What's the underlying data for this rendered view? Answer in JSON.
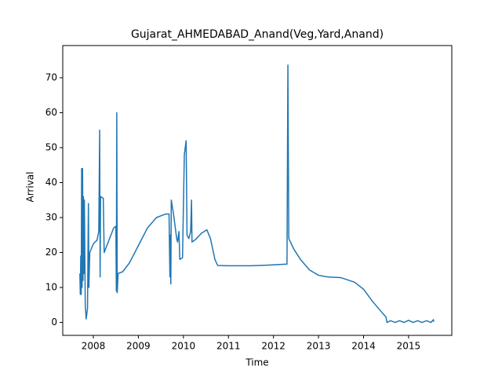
{
  "chart_data": {
    "type": "line",
    "title": "Gujarat_AHMEDABAD_Anand(Veg,Yard,Anand)",
    "x_label": "Time",
    "y_label": "Arrival",
    "xlim": [
      2007.32,
      2015.96
    ],
    "ylim": [
      -3.7,
      79.2
    ],
    "xticks": [
      2008,
      2009,
      2010,
      2011,
      2012,
      2013,
      2014,
      2015
    ],
    "yticks": [
      0,
      10,
      20,
      30,
      40,
      50,
      60,
      70
    ],
    "series": [
      {
        "color": "#1f77b4",
        "x": [
          2007.7,
          2007.71,
          2007.72,
          2007.73,
          2007.74,
          2007.75,
          2007.76,
          2007.77,
          2007.78,
          2007.79,
          2007.8,
          2007.82,
          2007.84,
          2007.87,
          2007.89,
          2007.9,
          2007.92,
          2008.0,
          2008.08,
          2008.12,
          2008.14,
          2008.15,
          2008.16,
          2008.22,
          2008.24,
          2008.3,
          2008.45,
          2008.5,
          2008.51,
          2008.52,
          2008.53,
          2008.55,
          2008.65,
          2008.8,
          2009.0,
          2009.2,
          2009.4,
          2009.6,
          2009.68,
          2009.7,
          2009.71,
          2009.72,
          2009.73,
          2009.78,
          2009.85,
          2009.87,
          2009.9,
          2009.92,
          2009.98,
          2010.02,
          2010.06,
          2010.08,
          2010.12,
          2010.16,
          2010.18,
          2010.19,
          2010.25,
          2010.4,
          2010.52,
          2010.6,
          2010.7,
          2010.76,
          2011.0,
          2011.5,
          2011.9,
          2012.3,
          2012.32,
          2012.34,
          2012.45,
          2012.6,
          2012.8,
          2013.0,
          2013.2,
          2013.5,
          2013.8,
          2014.0,
          2014.2,
          2014.4,
          2014.5,
          2014.52,
          2014.6,
          2014.7,
          2014.8,
          2014.9,
          2015.0,
          2015.1,
          2015.2,
          2015.3,
          2015.4,
          2015.5,
          2015.55,
          2015.56
        ],
        "values": [
          14,
          8,
          19,
          8,
          44,
          10,
          44,
          12,
          36,
          14,
          35,
          5,
          1,
          4,
          34,
          10,
          20,
          22.5,
          23.5,
          26,
          55,
          13,
          36,
          35.5,
          20,
          22,
          27,
          27.5,
          9,
          60,
          8.5,
          14,
          14.5,
          17,
          22,
          27,
          30,
          31,
          31,
          13,
          25,
          11,
          35,
          31,
          24,
          23,
          26,
          18,
          18.5,
          48,
          52,
          25,
          24,
          26,
          35,
          23,
          23.5,
          25.5,
          26.5,
          24,
          18,
          16.3,
          16.2,
          16.2,
          16.4,
          16.7,
          73.6,
          24,
          21,
          18,
          15,
          13.5,
          13,
          12.8,
          11.5,
          9.5,
          6,
          3,
          1.5,
          0,
          0.5,
          0,
          0.5,
          0,
          0.6,
          0,
          0.5,
          0,
          0.5,
          0,
          0.8,
          0.2
        ]
      }
    ]
  }
}
